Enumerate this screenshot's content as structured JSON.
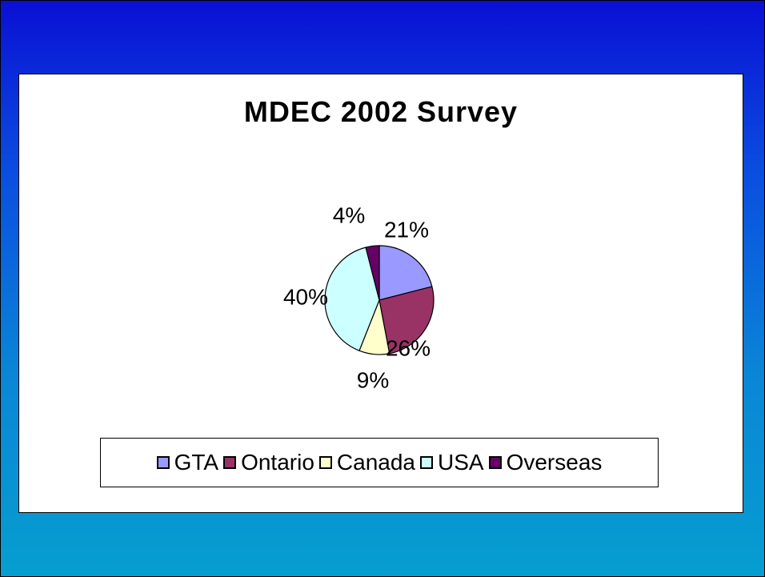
{
  "chart_data": {
    "type": "pie",
    "title": "MDEC 2002 Survey",
    "categories": [
      "GTA",
      "Ontario",
      "Canada",
      "USA",
      "Overseas"
    ],
    "values": [
      21,
      26,
      9,
      40,
      4
    ],
    "data_labels": [
      "21%",
      "26%",
      "9%",
      "40%",
      "4%"
    ],
    "colors": [
      "#9999ff",
      "#993366",
      "#ffffcc",
      "#ccffff",
      "#660066"
    ],
    "legend_position": "bottom"
  }
}
